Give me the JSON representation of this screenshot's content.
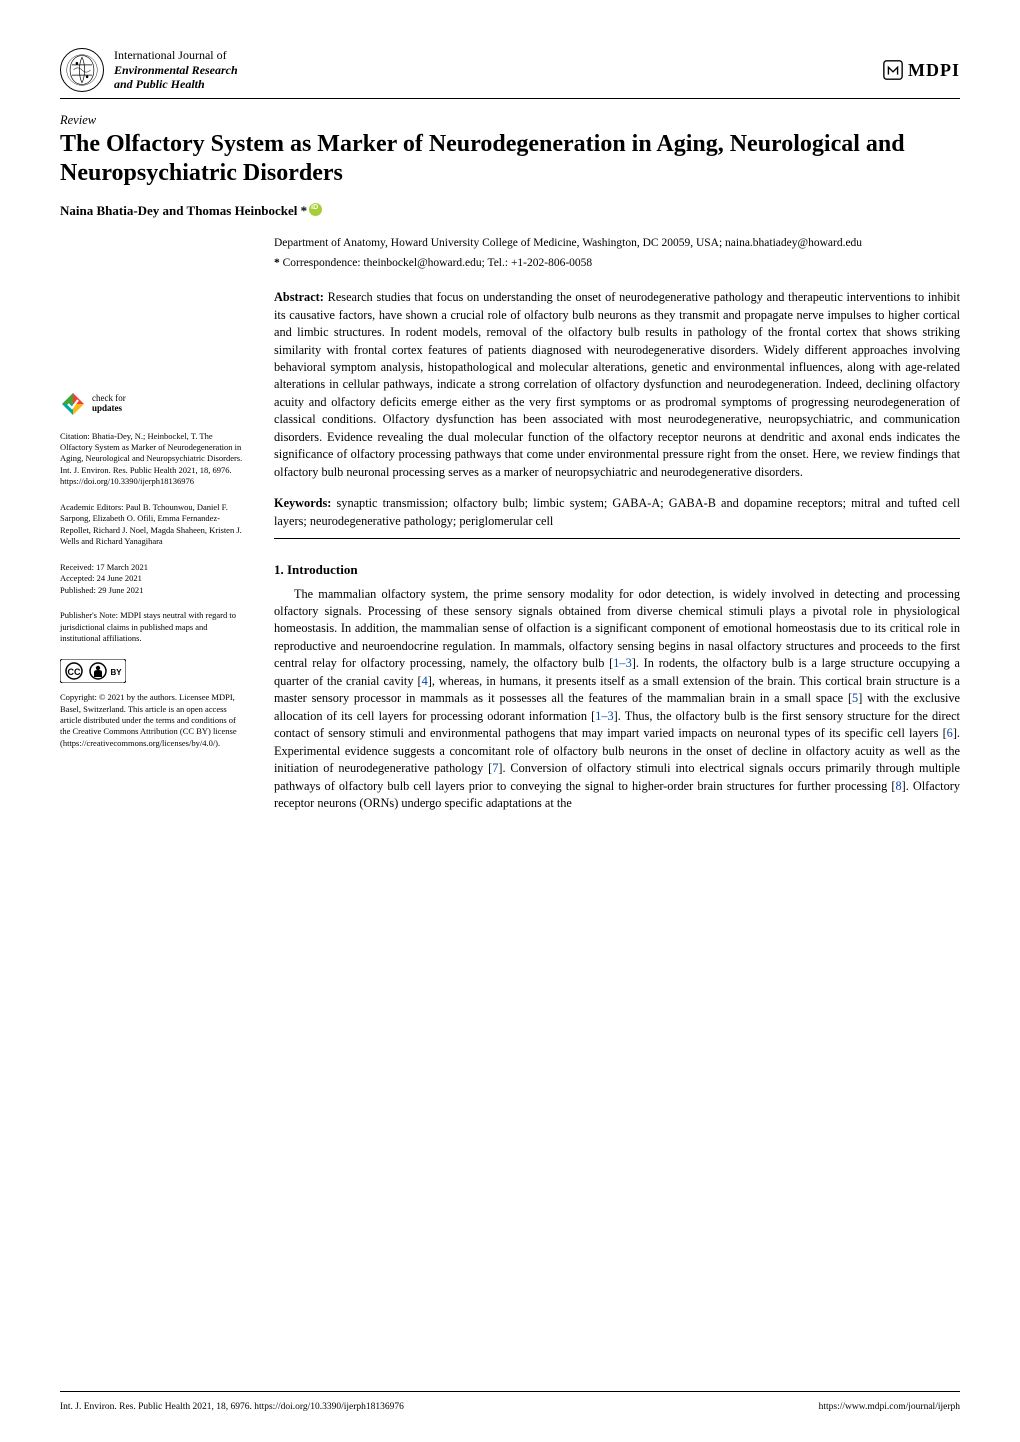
{
  "journal": {
    "line1": "International Journal of",
    "line2": "Environmental Research",
    "line3": "and Public Health"
  },
  "publisher_logo_text": "MDPI",
  "article_type": "Review",
  "title": "The Olfactory System as Marker of Neurodegeneration in Aging, Neurological and Neuropsychiatric Disorders",
  "authors_line": "Naina Bhatia-Dey and Thomas Heinbockel *",
  "affiliation": "Department of Anatomy, Howard University College of Medicine, Washington, DC 20059, USA; naina.bhatiadey@howard.edu",
  "correspondence_label": "*",
  "correspondence": "Correspondence: theinbockel@howard.edu; Tel.: +1-202-806-0058",
  "abstract_label": "Abstract:",
  "abstract_text": "Research studies that focus on understanding the onset of neurodegenerative pathology and therapeutic interventions to inhibit its causative factors, have shown a crucial role of olfactory bulb neurons as they transmit and propagate nerve impulses to higher cortical and limbic structures. In rodent models, removal of the olfactory bulb results in pathology of the frontal cortex that shows striking similarity with frontal cortex features of patients diagnosed with neurodegenerative disorders. Widely different approaches involving behavioral symptom analysis, histopathological and molecular alterations, genetic and environmental influences, along with age-related alterations in cellular pathways, indicate a strong correlation of olfactory dysfunction and neurodegeneration. Indeed, declining olfactory acuity and olfactory deficits emerge either as the very first symptoms or as prodromal symptoms of progressing neurodegeneration of classical conditions. Olfactory dysfunction has been associated with most neurodegenerative, neuropsychiatric, and communication disorders. Evidence revealing the dual molecular function of the olfactory receptor neurons at dendritic and axonal ends indicates the significance of olfactory processing pathways that come under environmental pressure right from the onset. Here, we review findings that olfactory bulb neuronal processing serves as a marker of neuropsychiatric and neurodegenerative disorders.",
  "keywords_label": "Keywords:",
  "keywords_text": "synaptic transmission; olfactory bulb; limbic system; GABA-A; GABA-B and dopamine receptors; mitral and tufted cell layers; neurodegenerative pathology; periglomerular cell",
  "section1_heading": "1. Introduction",
  "section1_body": "The mammalian olfactory system, the prime sensory modality for odor detection, is widely involved in detecting and processing olfactory signals. Processing of these sensory signals obtained from diverse chemical stimuli plays a pivotal role in physiological homeostasis. In addition, the mammalian sense of olfaction is a significant component of emotional homeostasis due to its critical role in reproductive and neuroendocrine regulation. In mammals, olfactory sensing begins in nasal olfactory structures and proceeds to the first central relay for olfactory processing, namely, the olfactory bulb [1–3]. In rodents, the olfactory bulb is a large structure occupying a quarter of the cranial cavity [4], whereas, in humans, it presents itself as a small extension of the brain. This cortical brain structure is a master sensory processor in mammals as it possesses all the features of the mammalian brain in a small space [5] with the exclusive allocation of its cell layers for processing odorant information [1–3]. Thus, the olfactory bulb is the first sensory structure for the direct contact of sensory stimuli and environmental pathogens that may impart varied impacts on neuronal types of its specific cell layers [6]. Experimental evidence suggests a concomitant role of olfactory bulb neurons in the onset of decline in olfactory acuity as well as the initiation of neurodegenerative pathology [7]. Conversion of olfactory stimuli into electrical signals occurs primarily through multiple pathways of olfactory bulb cell layers prior to conveying the signal to higher-order brain structures for further processing [8]. Olfactory receptor neurons (ORNs) undergo specific adaptations at the",
  "sidebar": {
    "check_updates": {
      "line1": "check for",
      "line2": "updates"
    },
    "citation": "Citation: Bhatia-Dey, N.; Heinbockel, T. The Olfactory System as Marker of Neurodegeneration in Aging, Neurological and Neuropsychiatric Disorders. Int. J. Environ. Res. Public Health 2021, 18, 6976. https://doi.org/10.3390/ijerph18136976",
    "editors": "Academic Editors: Paul B. Tchounwou, Daniel F. Sarpong, Elizabeth O. Ofili, Emma Fernandez-Repollet, Richard J. Noel, Magda Shaheen, Kristen J. Wells and Richard Yanagihara",
    "received": "Received: 17 March 2021",
    "accepted": "Accepted: 24 June 2021",
    "published": "Published: 29 June 2021",
    "publishers_note": "Publisher's Note: MDPI stays neutral with regard to jurisdictional claims in published maps and institutional affiliations.",
    "copyright": "Copyright: © 2021 by the authors. Licensee MDPI, Basel, Switzerland. This article is an open access article distributed under the terms and conditions of the Creative Commons Attribution (CC BY) license (https://creativecommons.org/licenses/by/4.0/)."
  },
  "footer": {
    "left": "Int. J. Environ. Res. Public Health 2021, 18, 6976. https://doi.org/10.3390/ijerph18136976",
    "right": "https://www.mdpi.com/journal/ijerph"
  },
  "colors": {
    "text": "#000000",
    "link": "#0645AD",
    "orcid": "#A6CE39",
    "check_green": "#3FA535",
    "check_teal": "#00A99D",
    "check_yellow": "#FDB913",
    "check_red": "#EF4136"
  }
}
